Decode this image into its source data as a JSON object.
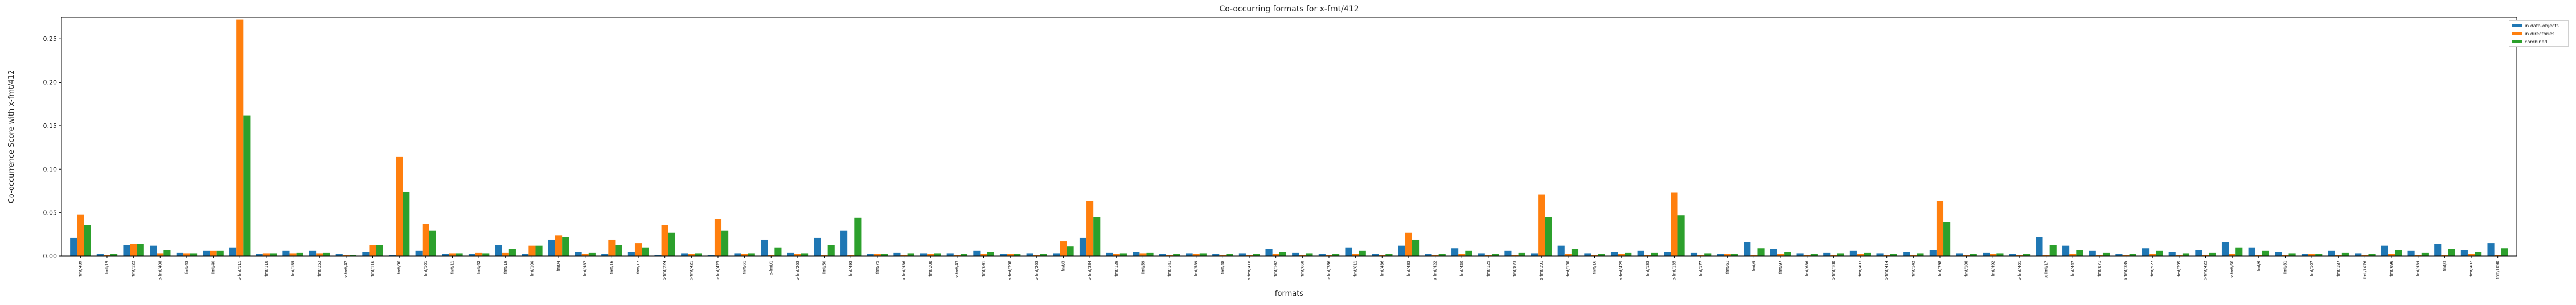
{
  "chart_data": {
    "type": "bar",
    "title": "Co-occurring formats for x-fmt/412",
    "xlabel": "formats",
    "ylabel": "Co-occurrence Score with x-fmt/412",
    "ylim": [
      0,
      0.275
    ],
    "yticks": [
      "0.00",
      "0.05",
      "0.10",
      "0.15",
      "0.20",
      "0.25"
    ],
    "grid": false,
    "legend_position": "outside-right-top",
    "colors": {
      "in data-objects": "#1f77b4",
      "in directories": "#ff7f0e",
      "combined": "#2ca02c"
    },
    "categories": [
      "fmt/489",
      "fmt/19",
      "fmt/122",
      "x-fmt/408",
      "fmt/43",
      "fmt/40",
      "x-fmt/111",
      "fmt/110",
      "fmt/155",
      "fmt/353",
      "x-fmt/42",
      "fmt/116",
      "fmt/96",
      "fmt/101",
      "fmt/11",
      "fmt/42",
      "fmt/19",
      "fmt/100",
      "fmt/4",
      "fmt/487",
      "fmt/16",
      "fmt/17",
      "x-fmt/224",
      "x-fmt/421",
      "x-fmt/425",
      "fmt/61",
      "x-fmt/1",
      "x-fmt/263",
      "fmt/50",
      "fmt/493",
      "fmt/79",
      "x-fmt/436",
      "fmt/208",
      "x-fmt/43",
      "fmt/641",
      "x-fmt/398",
      "x-fmt/263",
      "fmt/3",
      "x-fmt/384",
      "fmt/129",
      "fmt/59",
      "fmt/141",
      "fmt/589",
      "fmt/48",
      "x-fmt/418",
      "fmt/142",
      "fmt/668",
      "x-fmt/386",
      "fmt/611",
      "fmt/486",
      "fmt/483",
      "x-fmt/422",
      "fmt/420",
      "fmt/129",
      "fmt/873",
      "x-fmt/391",
      "fmt/130",
      "fmt/16",
      "x-fmt/429",
      "fmt/133",
      "x-fmt/135",
      "fmt/177",
      "fmt/61",
      "fmt/5",
      "fmt/97",
      "fmt/686",
      "x-fmt/100",
      "fmt/403",
      "x-fmt/414",
      "fmt/142",
      "fmt/398",
      "fmt/108",
      "fmt/492",
      "x-fmt/401",
      "x-fmt/17",
      "fmt/447",
      "fmt/871",
      "x-fmt/385",
      "fmt/927",
      "fmt/395",
      "x-fmt/422",
      "x-fmt/66",
      "fmt/6",
      "fmt/81",
      "fmt/107",
      "fmt/187",
      "fmt/1076",
      "fmt/696",
      "fmt/434",
      "fmt/3",
      "fmt/482",
      "fmt/1090"
    ],
    "series": [
      {
        "name": "in data-objects",
        "values": [
          0.021,
          0.002,
          0.013,
          0.012,
          0.004,
          0.006,
          0.01,
          0.002,
          0.006,
          0.006,
          0.002,
          0.005,
          0.001,
          0.006,
          0.002,
          0.002,
          0.013,
          0.002,
          0.019,
          0.005,
          0.002,
          0.005,
          0.001,
          0.003,
          0.001,
          0.003,
          0.019,
          0.004,
          0.021,
          0.029,
          0.002,
          0.004,
          0.003,
          0.003,
          0.006,
          0.002,
          0.003,
          0.003,
          0.021,
          0.004,
          0.005,
          0.002,
          0.003,
          0.002,
          0.003,
          0.008,
          0.004,
          0.002,
          0.01,
          0.002,
          0.012,
          0.002,
          0.009,
          0.003,
          0.006,
          0.003,
          0.012,
          0.003,
          0.005,
          0.006,
          0.005,
          0.004,
          0.002,
          0.016,
          0.008,
          0.003,
          0.004,
          0.006,
          0.003,
          0.005,
          0.007,
          0.003,
          0.004,
          0.002,
          0.022,
          0.012,
          0.006,
          0.002,
          0.009,
          0.005,
          0.007,
          0.016,
          0.01,
          0.005,
          0.002,
          0.006,
          0.003,
          0.012,
          0.006,
          0.014,
          0.007,
          0.015
        ]
      },
      {
        "name": "in directories",
        "values": [
          0.048,
          0.001,
          0.014,
          0.003,
          0.003,
          0.006,
          0.272,
          0.003,
          0.003,
          0.003,
          0.001,
          0.013,
          0.114,
          0.037,
          0.003,
          0.004,
          0.004,
          0.012,
          0.024,
          0.002,
          0.019,
          0.015,
          0.036,
          0.002,
          0.043,
          0.002,
          0.001,
          0.002,
          0.001,
          0.001,
          0.002,
          0.001,
          0.002,
          0.001,
          0.002,
          0.002,
          0.001,
          0.017,
          0.063,
          0.002,
          0.003,
          0.001,
          0.002,
          0.001,
          0.001,
          0.002,
          0.001,
          0.001,
          0.002,
          0.001,
          0.027,
          0.001,
          0.002,
          0.001,
          0.001,
          0.071,
          0.002,
          0.001,
          0.002,
          0.001,
          0.073,
          0.001,
          0.002,
          0.001,
          0.002,
          0.001,
          0.001,
          0.002,
          0.001,
          0.001,
          0.063,
          0.001,
          0.002,
          0.001,
          0.001,
          0.002,
          0.001,
          0.001,
          0.002,
          0.001,
          0.001,
          0.002,
          0.001,
          0.001,
          0.002,
          0.001,
          0.001,
          0.002,
          0.001,
          0.001,
          0.002,
          0.001
        ]
      },
      {
        "name": "combined",
        "values": [
          0.036,
          0.002,
          0.014,
          0.007,
          0.003,
          0.006,
          0.162,
          0.003,
          0.004,
          0.004,
          0.001,
          0.013,
          0.074,
          0.029,
          0.003,
          0.003,
          0.008,
          0.012,
          0.022,
          0.004,
          0.013,
          0.01,
          0.027,
          0.003,
          0.029,
          0.003,
          0.01,
          0.003,
          0.013,
          0.044,
          0.002,
          0.003,
          0.003,
          0.002,
          0.005,
          0.002,
          0.002,
          0.011,
          0.045,
          0.003,
          0.004,
          0.002,
          0.003,
          0.002,
          0.002,
          0.005,
          0.003,
          0.002,
          0.006,
          0.002,
          0.019,
          0.002,
          0.006,
          0.002,
          0.004,
          0.045,
          0.008,
          0.002,
          0.004,
          0.004,
          0.047,
          0.003,
          0.002,
          0.009,
          0.005,
          0.002,
          0.003,
          0.004,
          0.002,
          0.003,
          0.039,
          0.002,
          0.003,
          0.002,
          0.013,
          0.007,
          0.004,
          0.002,
          0.006,
          0.003,
          0.004,
          0.01,
          0.006,
          0.003,
          0.002,
          0.004,
          0.002,
          0.007,
          0.004,
          0.008,
          0.005,
          0.009
        ]
      }
    ]
  }
}
